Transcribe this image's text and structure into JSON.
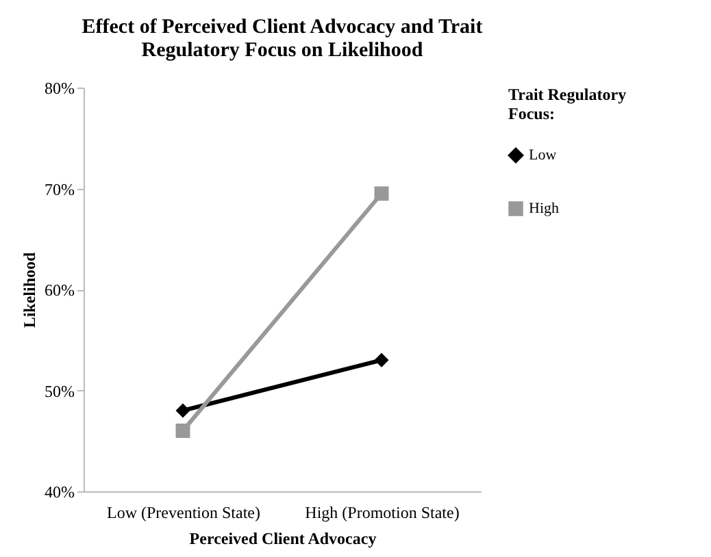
{
  "chart_data": {
    "type": "line",
    "title": "Effect of Perceived Client Advocacy and Trait Regulatory Focus on Likelihood",
    "xlabel": "Perceived Client Advocacy",
    "ylabel": "Likelihood",
    "legend_title": "Trait Regulatory Focus:",
    "categories": [
      "Low (Prevention State)",
      "High (Promotion State)"
    ],
    "series": [
      {
        "name": "Low",
        "color": "#000000",
        "marker": "diamond",
        "values": [
          48,
          53
        ]
      },
      {
        "name": "High",
        "color": "#999999",
        "marker": "square",
        "values": [
          46,
          69.5
        ]
      }
    ],
    "ylim": [
      40,
      80
    ],
    "yticks": [
      {
        "value": 40,
        "label": "40%"
      },
      {
        "value": 50,
        "label": "50%"
      },
      {
        "value": 60,
        "label": "60%"
      },
      {
        "value": 70,
        "label": "70%"
      },
      {
        "value": 80,
        "label": "80%"
      }
    ],
    "grid": false,
    "legend": "right",
    "line_style": "solid"
  }
}
